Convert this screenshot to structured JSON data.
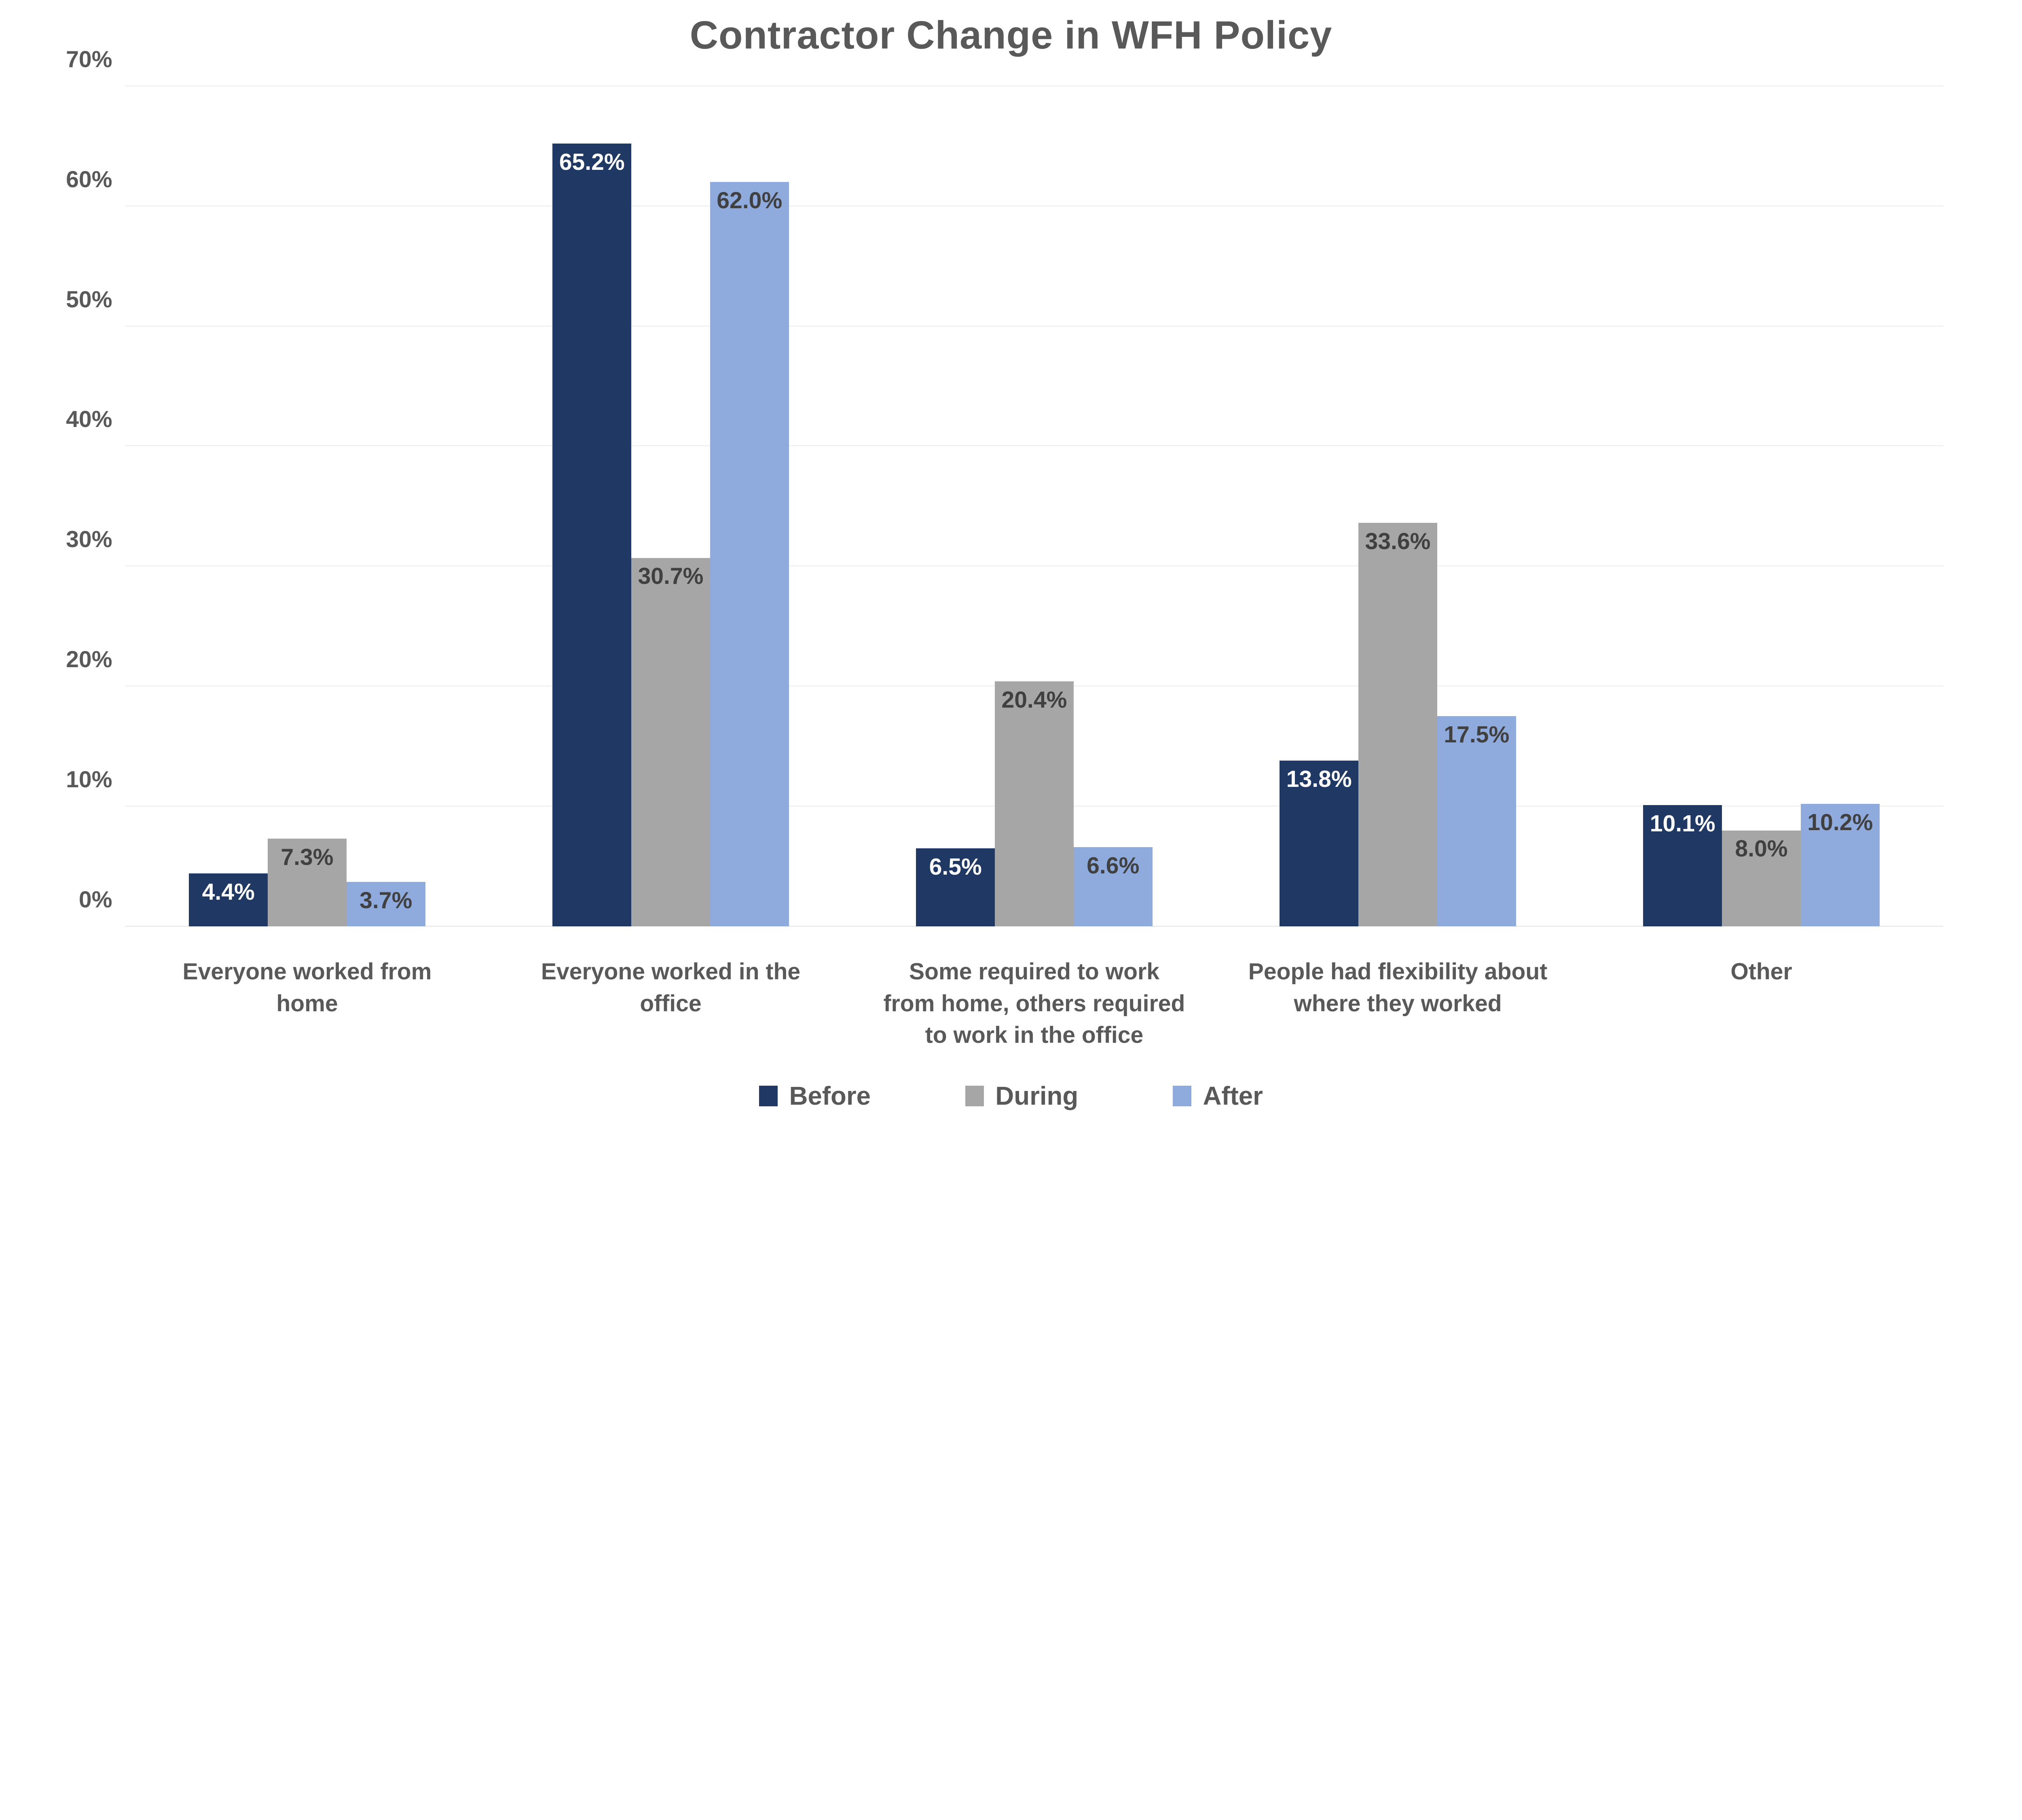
{
  "title": "Contractor Change in WFH Policy",
  "colors": {
    "navy": "#1F3864",
    "gray": "#A6A6A6",
    "light_blue": "#8FAADC",
    "axis_text": "#595959",
    "data_label_dark": "#404040",
    "data_label_light": "#FFFFFF",
    "gridline": "#D9D9D9"
  },
  "chart_data": {
    "type": "bar",
    "title": "Contractor Change in WFH Policy",
    "categories": [
      "Everyone worked from home",
      "Everyone worked in the office",
      "Some required to work from home, others required to work in the office",
      "People had flexibility about where they worked",
      "Other"
    ],
    "series": [
      {
        "name": "Before",
        "color": "#1F3864",
        "label_color": "#FFFFFF",
        "values": [
          4.4,
          65.2,
          6.5,
          13.8,
          10.1
        ]
      },
      {
        "name": "During",
        "color": "#A6A6A6",
        "label_color": "#404040",
        "values": [
          7.3,
          30.7,
          20.4,
          33.6,
          8.0
        ]
      },
      {
        "name": "After",
        "color": "#8FAADC",
        "label_color": "#404040",
        "values": [
          3.7,
          62.0,
          6.6,
          17.5,
          10.2
        ]
      }
    ],
    "data_labels": [
      [
        "4.4%",
        "65.2%",
        "6.5%",
        "13.8%",
        "10.1%"
      ],
      [
        "7.3%",
        "30.7%",
        "20.4%",
        "33.6%",
        "8.0%"
      ],
      [
        "3.7%",
        "62.0%",
        "6.6%",
        "17.5%",
        "10.2%"
      ]
    ],
    "xlabel": "",
    "ylabel": "",
    "ylim": [
      0,
      70
    ],
    "y_ticks": [
      "0%",
      "10%",
      "20%",
      "30%",
      "40%",
      "50%",
      "60%",
      "70%"
    ],
    "grid": true,
    "legend_position": "bottom",
    "legend": [
      "Before",
      "During",
      "After"
    ]
  }
}
